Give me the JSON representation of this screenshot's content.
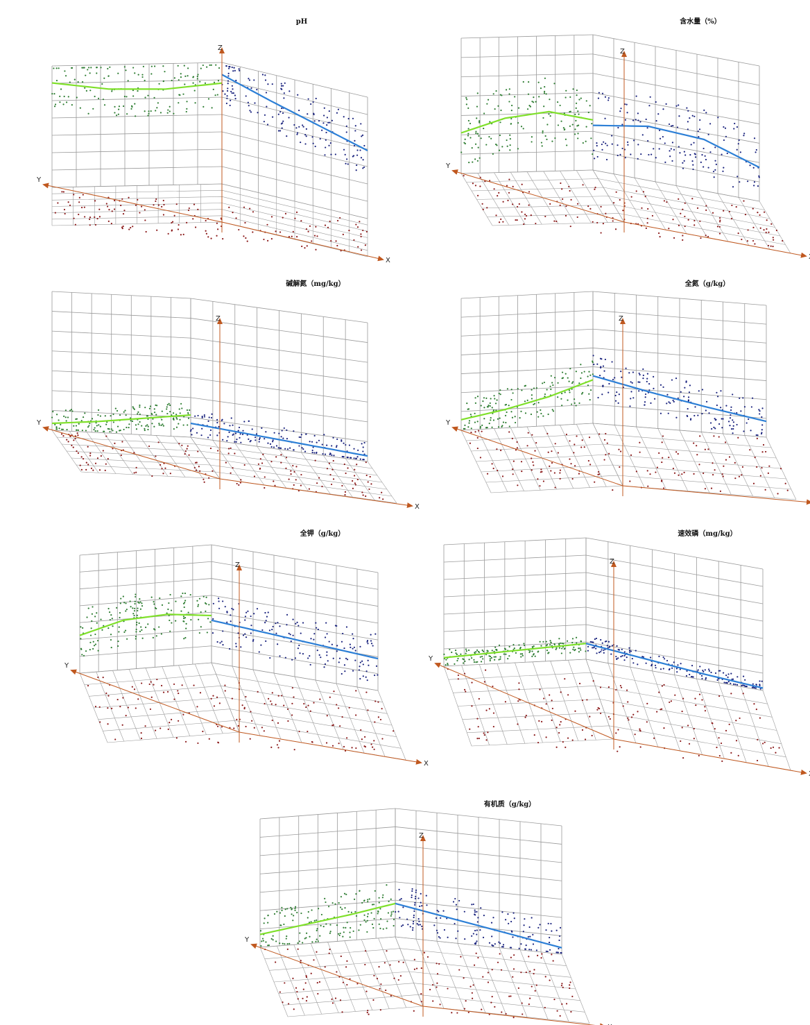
{
  "figure": {
    "panels": [
      {
        "id": "ph",
        "title": "pH"
      },
      {
        "id": "water",
        "title": "含水量（%）"
      },
      {
        "id": "alkaline_n",
        "title": "碱解氮（mg/kg）"
      },
      {
        "id": "total_n",
        "title": "全氮（g/kg）"
      },
      {
        "id": "total_k",
        "title": "全钾（g/kg）"
      },
      {
        "id": "avail_p",
        "title": "速效磷（mg/kg）"
      },
      {
        "id": "organic",
        "title": "有机质（g/kg）"
      }
    ],
    "axis_labels": {
      "x": "X",
      "y": "Y",
      "z": "Z"
    }
  },
  "colors": {
    "grid": "#9a9a9a",
    "axis": "#c0581f",
    "yz_points": "#2e7d32",
    "xz_points": "#1a237e",
    "xy_points": "#8b1a1a",
    "yz_trend": "#7fe02a",
    "xz_trend": "#2c7fd6"
  },
  "chart_data": [
    {
      "type": "scatter",
      "title": "pH",
      "projections": [
        "Y-Z",
        "X-Z",
        "X-Y"
      ],
      "trend_yz": [
        0.86,
        0.8,
        0.79,
        0.83
      ],
      "trend_xz": [
        0.9,
        0.78,
        0.67,
        0.56
      ],
      "spread": 0.28
    },
    {
      "type": "scatter",
      "title": "含水量（%）",
      "projections": [
        "Y-Z",
        "X-Z",
        "X-Y"
      ],
      "trend_yz": [
        0.3,
        0.4,
        0.44,
        0.37
      ],
      "trend_xz": [
        0.33,
        0.4,
        0.38,
        0.25
      ],
      "spread": 0.32
    },
    {
      "type": "scatter",
      "title": "碱解氮（mg/kg）",
      "projections": [
        "Y-Z",
        "X-Z",
        "X-Y"
      ],
      "trend_yz": [
        0.05,
        0.08,
        0.12,
        0.16
      ],
      "trend_xz": [
        0.1,
        0.08,
        0.06,
        0.04
      ],
      "spread": 0.12
    },
    {
      "type": "scatter",
      "title": "全氮（g/kg）",
      "projections": [
        "Y-Z",
        "X-Z",
        "X-Y"
      ],
      "trend_yz": [
        0.08,
        0.14,
        0.22,
        0.33
      ],
      "trend_xz": [
        0.36,
        0.27,
        0.19,
        0.12
      ],
      "spread": 0.2
    },
    {
      "type": "scatter",
      "title": "全钾（g/kg）",
      "projections": [
        "Y-Z",
        "X-Z",
        "X-Y"
      ],
      "trend_yz": [
        0.32,
        0.42,
        0.44,
        0.4
      ],
      "trend_xz": [
        0.36,
        0.33,
        0.3,
        0.27
      ],
      "spread": 0.26
    },
    {
      "type": "scatter",
      "title": "速效磷（mg/kg）",
      "projections": [
        "Y-Z",
        "X-Z",
        "X-Y"
      ],
      "trend_yz": [
        0.07,
        0.09,
        0.11,
        0.13
      ],
      "trend_xz": [
        0.13,
        0.09,
        0.05,
        0.02
      ],
      "spread": 0.08
    },
    {
      "type": "scatter",
      "title": "有机质（g/kg）",
      "projections": [
        "Y-Z",
        "X-Z",
        "X-Y"
      ],
      "trend_yz": [
        0.1,
        0.15,
        0.2,
        0.26
      ],
      "trend_xz": [
        0.26,
        0.19,
        0.12,
        0.05
      ],
      "spread": 0.22
    }
  ]
}
